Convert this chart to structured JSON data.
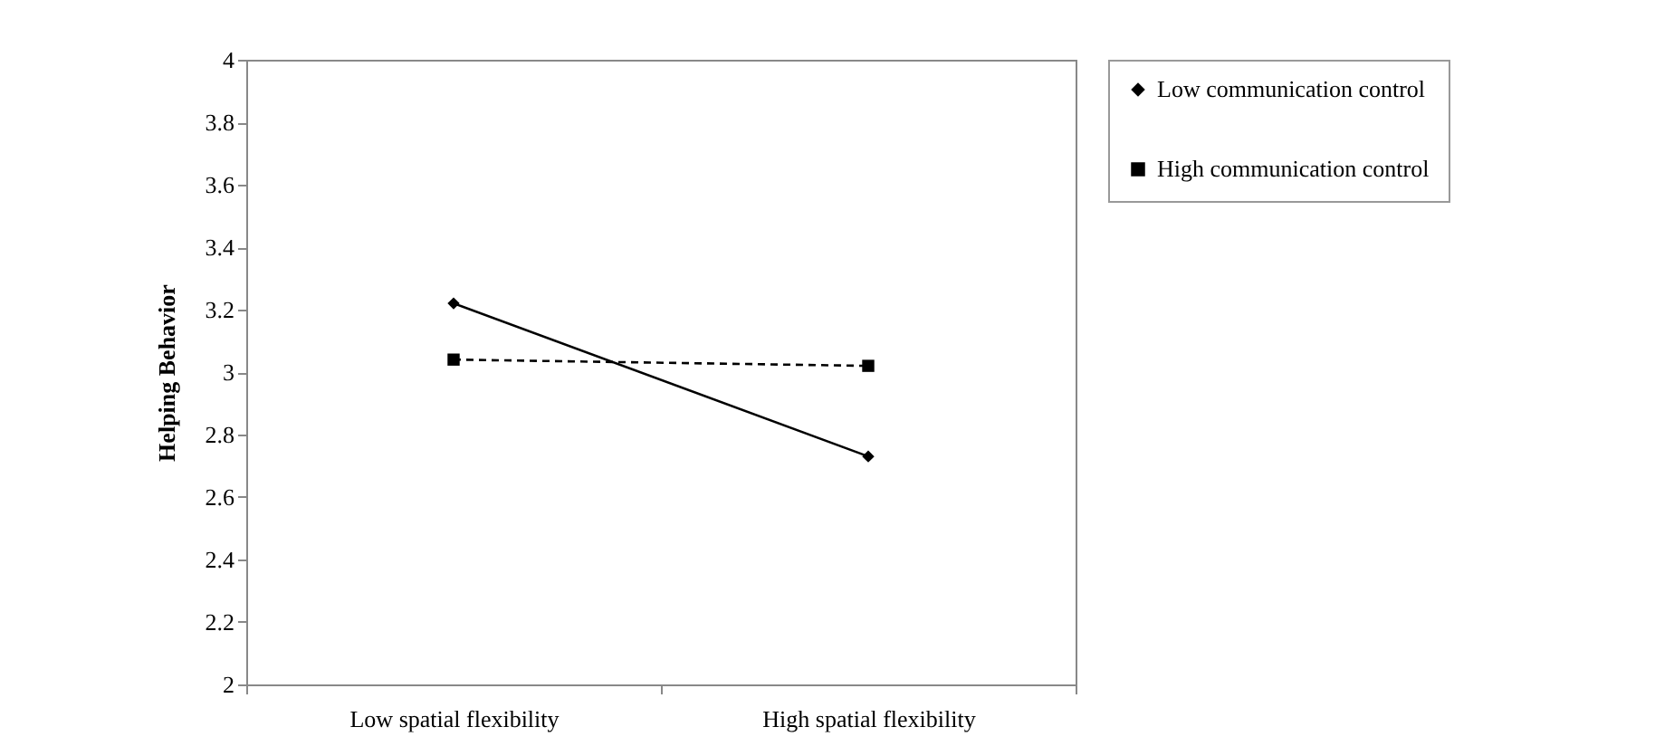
{
  "chart_data": {
    "type": "line",
    "ylabel": "Helping Behavior",
    "categories": [
      "Low spatial flexibility",
      "High spatial flexibility"
    ],
    "series": [
      {
        "name": "Low communication control",
        "color": "#000000",
        "values": [
          3.22,
          2.73
        ],
        "marker": "diamond",
        "line_style": "solid"
      },
      {
        "name": "High communication control",
        "color": "#000000",
        "values": [
          3.04,
          3.02
        ],
        "marker": "square",
        "line_style": "dashed"
      }
    ],
    "ylim": [
      2,
      4
    ],
    "yticks": [
      2,
      2.2,
      2.4,
      2.6,
      2.8,
      3,
      3.2,
      3.4,
      3.6,
      3.8,
      4
    ],
    "grid": false,
    "legend": "right"
  }
}
